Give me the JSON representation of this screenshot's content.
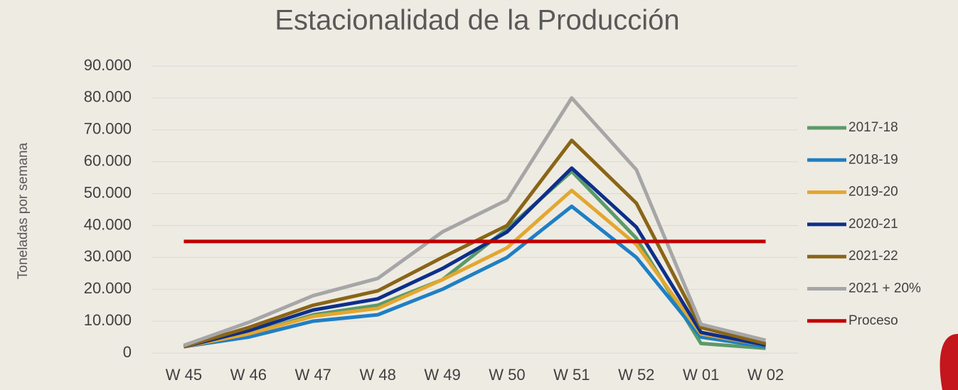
{
  "chart_data": {
    "type": "line",
    "title": "Estacionalidad de la Producción",
    "y_label": "Toneladas por semana",
    "categories": [
      "W 45",
      "W 46",
      "W 47",
      "W 48",
      "W 49",
      "W 50",
      "W 51",
      "W 52",
      "W 01",
      "W 02"
    ],
    "series": [
      {
        "name": "2017-18",
        "color": "#5b9a68",
        "values": [
          2000,
          6000,
          12000,
          15000,
          23000,
          39000,
          57000,
          36000,
          3000,
          1500
        ]
      },
      {
        "name": "2018-19",
        "color": "#1f7fc4",
        "values": [
          2000,
          5000,
          10000,
          12000,
          20000,
          30000,
          46000,
          30000,
          5000,
          2000
        ]
      },
      {
        "name": "2019-20",
        "color": "#e3a72f",
        "values": [
          2000,
          6000,
          11500,
          14000,
          23000,
          33000,
          51000,
          34000,
          6000,
          2500
        ]
      },
      {
        "name": "2020-21",
        "color": "#0d2f8a",
        "values": [
          2000,
          7000,
          13500,
          17000,
          26500,
          38000,
          58000,
          39500,
          6500,
          2500
        ]
      },
      {
        "name": "2021-22",
        "color": "#8a6517",
        "values": [
          2000,
          8000,
          15000,
          19500,
          30000,
          40000,
          66700,
          47000,
          8000,
          3000
        ]
      },
      {
        "name": "2021 + 20%",
        "color": "#a6a6a6",
        "values": [
          2400,
          9600,
          18000,
          23400,
          38000,
          48000,
          80000,
          57500,
          9000,
          4000
        ]
      },
      {
        "name": "Proceso",
        "color": "#c00000",
        "values": [
          35000,
          35000,
          35000,
          35000,
          35000,
          35000,
          35000,
          35000,
          35000,
          35000
        ]
      }
    ],
    "ylim": [
      0,
      90000
    ],
    "yticks": [
      0,
      {
        "value": 10000,
        "label": "10.000"
      },
      {
        "value": 20000,
        "label": "20.000"
      },
      {
        "value": 30000,
        "label": "30.000"
      },
      {
        "value": 40000,
        "label": "40.000"
      },
      {
        "value": 50000,
        "label": "50.000"
      },
      {
        "value": 60000,
        "label": "60.000"
      },
      {
        "value": 70000,
        "label": "70.000"
      },
      {
        "value": 80000,
        "label": "80.000"
      },
      {
        "value": 90000,
        "label": "90.000"
      }
    ],
    "grid": true,
    "legend": "right"
  }
}
